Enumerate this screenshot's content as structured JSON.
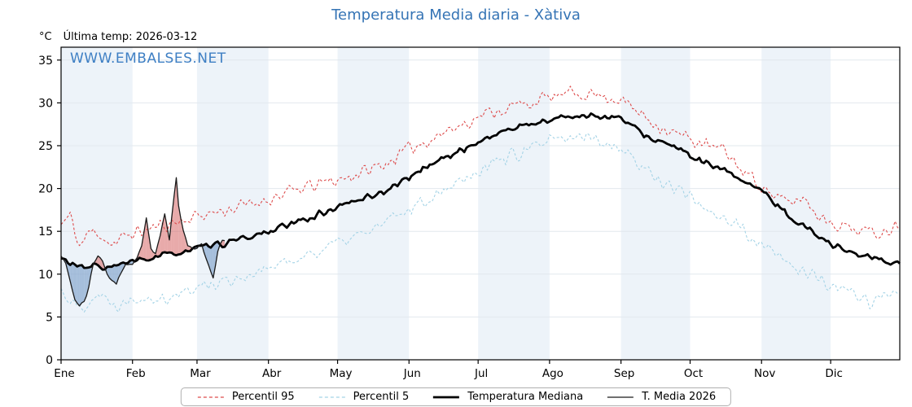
{
  "title": "Temperatura Media diaria - Xàtiva",
  "subtitle": {
    "units_label": "°C",
    "last_temp_label": "Última temp: 2026-03-12"
  },
  "watermark": "WWW.EMBALSES.NET",
  "legend": [
    {
      "label": "Percentil 95",
      "color": "#dd4b4b",
      "width": 1.3,
      "dash": "4,3"
    },
    {
      "label": "Percentil 5",
      "color": "#a4d3e6",
      "width": 1.3,
      "dash": "4,3"
    },
    {
      "label": "Temperatura Mediana",
      "color": "#000000",
      "width": 2.8,
      "dash": null
    },
    {
      "label": "T. Media 2026",
      "color": "#1a1a1a",
      "width": 1.2,
      "dash": null
    }
  ],
  "chart_data": {
    "type": "line",
    "title": "Temperatura Media diaria - Xàtiva",
    "xlabel": "",
    "ylabel": "°C",
    "x_unit": "day_of_year",
    "ylim": [
      0,
      36.5
    ],
    "yticks": [
      0,
      5,
      10,
      15,
      20,
      25,
      30,
      35
    ],
    "grid": true,
    "band_fill": "#edf3f9",
    "months": [
      {
        "label": "Ene",
        "start": 0
      },
      {
        "label": "Feb",
        "start": 31
      },
      {
        "label": "Mar",
        "start": 59
      },
      {
        "label": "Abr",
        "start": 90
      },
      {
        "label": "May",
        "start": 120
      },
      {
        "label": "Jun",
        "start": 151
      },
      {
        "label": "Jul",
        "start": 181
      },
      {
        "label": "Ago",
        "start": 212
      },
      {
        "label": "Sep",
        "start": 243
      },
      {
        "label": "Oct",
        "start": 273
      },
      {
        "label": "Nov",
        "start": 304
      },
      {
        "label": "Dic",
        "start": 334
      }
    ],
    "series": [
      {
        "name": "Percentil 95",
        "color": "#dd4b4b",
        "dash": "3,2.5",
        "width": 1.1,
        "noise": 1.0,
        "seed": 11,
        "points": [
          [
            0,
            15.8
          ],
          [
            4,
            16.8
          ],
          [
            8,
            13.2
          ],
          [
            12,
            14.8
          ],
          [
            16,
            15.0
          ],
          [
            20,
            13.8
          ],
          [
            24,
            13.5
          ],
          [
            28,
            14.5
          ],
          [
            31,
            14.8
          ],
          [
            38,
            15.2
          ],
          [
            45,
            15.8
          ],
          [
            52,
            16.2
          ],
          [
            59,
            16.8
          ],
          [
            66,
            17.2
          ],
          [
            73,
            17.6
          ],
          [
            80,
            18.0
          ],
          [
            90,
            18.8
          ],
          [
            100,
            19.6
          ],
          [
            110,
            20.4
          ],
          [
            120,
            21.0
          ],
          [
            130,
            21.8
          ],
          [
            140,
            22.8
          ],
          [
            151,
            24.6
          ],
          [
            160,
            25.8
          ],
          [
            170,
            27.0
          ],
          [
            181,
            28.4
          ],
          [
            190,
            29.2
          ],
          [
            200,
            29.8
          ],
          [
            212,
            30.6
          ],
          [
            220,
            31.0
          ],
          [
            228,
            31.2
          ],
          [
            235,
            30.8
          ],
          [
            243,
            30.4
          ],
          [
            250,
            29.0
          ],
          [
            258,
            27.6
          ],
          [
            265,
            26.6
          ],
          [
            273,
            25.8
          ],
          [
            280,
            25.0
          ],
          [
            288,
            24.4
          ],
          [
            296,
            22.0
          ],
          [
            304,
            20.4
          ],
          [
            310,
            19.0
          ],
          [
            316,
            18.2
          ],
          [
            322,
            19.0
          ],
          [
            328,
            17.0
          ],
          [
            334,
            16.2
          ],
          [
            340,
            15.6
          ],
          [
            346,
            15.2
          ],
          [
            352,
            14.8
          ],
          [
            358,
            15.2
          ],
          [
            364,
            15.8
          ]
        ]
      },
      {
        "name": "Percentil 5",
        "color": "#a4d3e6",
        "dash": "3,2.5",
        "width": 1.1,
        "noise": 1.0,
        "seed": 22,
        "points": [
          [
            0,
            8.2
          ],
          [
            4,
            7.0
          ],
          [
            8,
            5.9
          ],
          [
            12,
            7.0
          ],
          [
            16,
            7.8
          ],
          [
            20,
            6.8
          ],
          [
            24,
            6.4
          ],
          [
            28,
            7.0
          ],
          [
            31,
            7.2
          ],
          [
            38,
            7.6
          ],
          [
            45,
            7.2
          ],
          [
            52,
            7.8
          ],
          [
            59,
            8.4
          ],
          [
            66,
            9.0
          ],
          [
            73,
            9.4
          ],
          [
            80,
            9.8
          ],
          [
            90,
            10.6
          ],
          [
            100,
            11.6
          ],
          [
            110,
            12.6
          ],
          [
            120,
            13.6
          ],
          [
            130,
            14.6
          ],
          [
            140,
            15.8
          ],
          [
            151,
            17.6
          ],
          [
            160,
            19.0
          ],
          [
            170,
            20.6
          ],
          [
            181,
            22.2
          ],
          [
            190,
            23.4
          ],
          [
            200,
            24.2
          ],
          [
            212,
            25.4
          ],
          [
            220,
            25.8
          ],
          [
            228,
            26.0
          ],
          [
            235,
            25.6
          ],
          [
            243,
            24.8
          ],
          [
            250,
            23.0
          ],
          [
            258,
            21.4
          ],
          [
            265,
            20.2
          ],
          [
            273,
            19.0
          ],
          [
            280,
            17.8
          ],
          [
            288,
            16.6
          ],
          [
            296,
            15.0
          ],
          [
            304,
            13.2
          ],
          [
            310,
            12.2
          ],
          [
            316,
            11.2
          ],
          [
            322,
            10.4
          ],
          [
            328,
            9.4
          ],
          [
            334,
            8.6
          ],
          [
            340,
            8.0
          ],
          [
            346,
            7.4
          ],
          [
            352,
            6.8
          ],
          [
            358,
            7.6
          ],
          [
            364,
            8.2
          ]
        ]
      },
      {
        "name": "Temperatura Mediana",
        "color": "#000000",
        "dash": null,
        "width": 2.8,
        "noise": 0.45,
        "seed": 33,
        "points": [
          [
            0,
            11.8
          ],
          [
            5,
            11.2
          ],
          [
            10,
            10.6
          ],
          [
            15,
            11.0
          ],
          [
            20,
            10.8
          ],
          [
            25,
            11.0
          ],
          [
            31,
            11.4
          ],
          [
            38,
            11.8
          ],
          [
            45,
            12.2
          ],
          [
            52,
            12.6
          ],
          [
            59,
            13.0
          ],
          [
            66,
            13.3
          ],
          [
            71,
            13.6
          ],
          [
            78,
            14.0
          ],
          [
            90,
            15.0
          ],
          [
            100,
            15.8
          ],
          [
            110,
            16.8
          ],
          [
            120,
            17.8
          ],
          [
            130,
            18.8
          ],
          [
            140,
            19.6
          ],
          [
            151,
            21.3
          ],
          [
            160,
            22.8
          ],
          [
            170,
            24.0
          ],
          [
            181,
            25.4
          ],
          [
            190,
            26.5
          ],
          [
            200,
            27.3
          ],
          [
            212,
            28.0
          ],
          [
            220,
            28.4
          ],
          [
            230,
            28.6
          ],
          [
            238,
            28.3
          ],
          [
            243,
            28.2
          ],
          [
            250,
            26.8
          ],
          [
            258,
            25.6
          ],
          [
            265,
            25.0
          ],
          [
            273,
            23.8
          ],
          [
            282,
            22.6
          ],
          [
            290,
            21.8
          ],
          [
            298,
            20.8
          ],
          [
            304,
            19.6
          ],
          [
            312,
            17.8
          ],
          [
            320,
            16.0
          ],
          [
            327,
            14.8
          ],
          [
            334,
            13.6
          ],
          [
            342,
            12.6
          ],
          [
            350,
            12.0
          ],
          [
            357,
            11.6
          ],
          [
            364,
            11.3
          ]
        ]
      },
      {
        "name": "T. Media 2026",
        "color": "#1a1a1a",
        "dash": null,
        "width": 1.3,
        "noise": 0.3,
        "seed": 44,
        "end_day": 71,
        "points": [
          [
            0,
            12.0
          ],
          [
            2,
            11.5
          ],
          [
            4,
            9.0
          ],
          [
            6,
            7.0
          ],
          [
            8,
            6.3
          ],
          [
            10,
            6.8
          ],
          [
            12,
            8.5
          ],
          [
            14,
            11.0
          ],
          [
            16,
            12.3
          ],
          [
            18,
            11.5
          ],
          [
            20,
            10.0
          ],
          [
            22,
            9.2
          ],
          [
            24,
            9.0
          ],
          [
            26,
            10.0
          ],
          [
            28,
            11.0
          ],
          [
            31,
            11.3
          ],
          [
            33,
            12.0
          ],
          [
            35,
            13.5
          ],
          [
            37,
            16.5
          ],
          [
            39,
            13.0
          ],
          [
            41,
            12.5
          ],
          [
            43,
            14.5
          ],
          [
            45,
            16.8
          ],
          [
            47,
            14.0
          ],
          [
            49,
            19.0
          ],
          [
            50,
            21.2
          ],
          [
            51,
            18.0
          ],
          [
            53,
            15.0
          ],
          [
            55,
            13.5
          ],
          [
            57,
            13.0
          ],
          [
            59,
            13.2
          ],
          [
            61,
            13.5
          ],
          [
            63,
            12.0
          ],
          [
            65,
            10.0
          ],
          [
            66,
            9.5
          ],
          [
            67,
            11.0
          ],
          [
            68,
            12.5
          ],
          [
            69,
            13.5
          ],
          [
            70,
            14.0
          ],
          [
            71,
            13.8
          ]
        ]
      }
    ],
    "fill_between": {
      "upper_series": "T. Media 2026",
      "lower_series": "Temperatura Mediana",
      "above_color": "rgba(214,100,100,0.55)",
      "below_color": "rgba(105,145,195,0.55)"
    }
  }
}
